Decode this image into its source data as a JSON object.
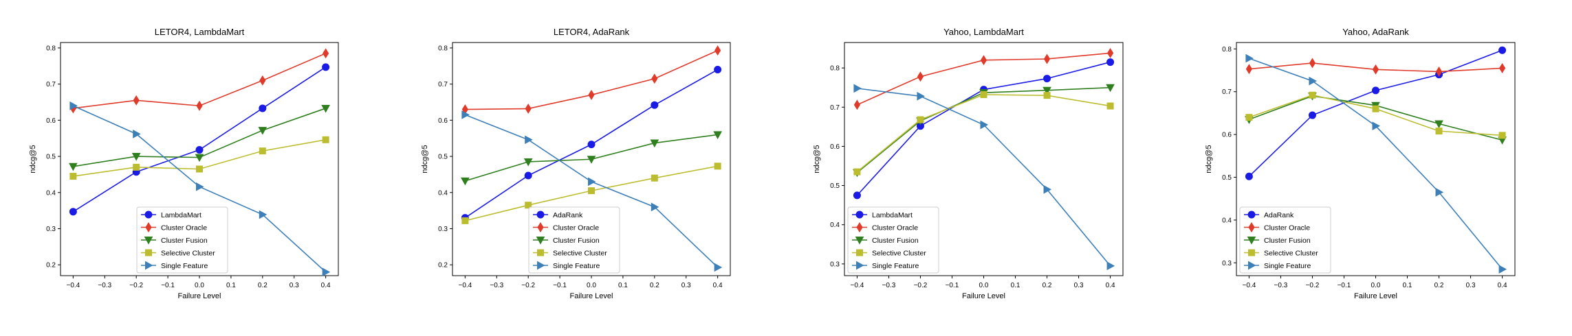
{
  "chart_data": [
    {
      "type": "line",
      "title": "LETOR4, LambdaMart",
      "xlabel": "Failure Level",
      "ylabel": "ndcg@5",
      "x": [
        -0.4,
        -0.2,
        0.0,
        0.2,
        0.4
      ],
      "xlim": [
        -0.44,
        0.44
      ],
      "ylim": [
        0.17,
        0.815
      ],
      "xticks": [
        "−0.4",
        "−0.3",
        "−0.2",
        "−0.1",
        "0.0",
        "0.1",
        "0.2",
        "0.3",
        "0.4"
      ],
      "yticks": [
        "0.2",
        "0.3",
        "0.4",
        "0.5",
        "0.6",
        "0.7",
        "0.8"
      ],
      "legend_position": "lower-center",
      "series": [
        {
          "name": "LambdaMart",
          "color": "#1b1be6",
          "marker": "circle",
          "values": [
            0.347,
            0.457,
            0.518,
            0.633,
            0.747
          ]
        },
        {
          "name": "Cluster Oracle",
          "color": "#e03a2a",
          "marker": "diamond",
          "values": [
            0.633,
            0.655,
            0.64,
            0.71,
            0.785
          ]
        },
        {
          "name": "Cluster Fusion",
          "color": "#2f7f1e",
          "marker": "triangle-down",
          "values": [
            0.472,
            0.5,
            0.497,
            0.572,
            0.633
          ]
        },
        {
          "name": "Selective Cluster",
          "color": "#bcbd2e",
          "marker": "square",
          "values": [
            0.445,
            0.47,
            0.465,
            0.515,
            0.546
          ]
        },
        {
          "name": "Single Feature",
          "color": "#3d7fb8",
          "marker": "triangle-right",
          "values": [
            0.64,
            0.562,
            0.416,
            0.339,
            0.18
          ]
        }
      ]
    },
    {
      "type": "line",
      "title": "LETOR4, AdaRank",
      "xlabel": "Failure Level",
      "ylabel": "ndcg@5",
      "x": [
        -0.4,
        -0.2,
        0.0,
        0.2,
        0.4
      ],
      "xlim": [
        -0.44,
        0.44
      ],
      "ylim": [
        0.17,
        0.815
      ],
      "xticks": [
        "−0.4",
        "−0.3",
        "−0.2",
        "−0.1",
        "0.0",
        "0.1",
        "0.2",
        "0.3",
        "0.4"
      ],
      "yticks": [
        "0.2",
        "0.3",
        "0.4",
        "0.5",
        "0.6",
        "0.7",
        "0.8"
      ],
      "legend_position": "lower-center",
      "series": [
        {
          "name": "AdaRank",
          "color": "#1b1be6",
          "marker": "circle",
          "values": [
            0.33,
            0.447,
            0.533,
            0.642,
            0.74
          ]
        },
        {
          "name": "Cluster Oracle",
          "color": "#e03a2a",
          "marker": "diamond",
          "values": [
            0.63,
            0.632,
            0.67,
            0.715,
            0.793
          ]
        },
        {
          "name": "Cluster Fusion",
          "color": "#2f7f1e",
          "marker": "triangle-down",
          "values": [
            0.432,
            0.485,
            0.492,
            0.537,
            0.56
          ]
        },
        {
          "name": "Selective Cluster",
          "color": "#bcbd2e",
          "marker": "square",
          "values": [
            0.322,
            0.365,
            0.405,
            0.44,
            0.473
          ]
        },
        {
          "name": "Single Feature",
          "color": "#3d7fb8",
          "marker": "triangle-right",
          "values": [
            0.615,
            0.546,
            0.43,
            0.36,
            0.193
          ]
        }
      ]
    },
    {
      "type": "line",
      "title": "Yahoo, LambdaMart",
      "xlabel": "Failure Level",
      "ylabel": "ndcg@5",
      "x": [
        -0.4,
        -0.2,
        0.0,
        0.2,
        0.4
      ],
      "xlim": [
        -0.44,
        0.44
      ],
      "ylim": [
        0.27,
        0.865
      ],
      "xticks": [
        "−0.4",
        "−0.3",
        "−0.2",
        "−0.1",
        "0.0",
        "0.1",
        "0.2",
        "0.3",
        "0.4"
      ],
      "yticks": [
        "0.3",
        "0.4",
        "0.5",
        "0.6",
        "0.7",
        "0.8"
      ],
      "legend_position": "lower-left",
      "series": [
        {
          "name": "LambdaMart",
          "color": "#1b1be6",
          "marker": "circle",
          "values": [
            0.475,
            0.652,
            0.745,
            0.773,
            0.815
          ]
        },
        {
          "name": "Cluster Oracle",
          "color": "#e03a2a",
          "marker": "diamond",
          "values": [
            0.706,
            0.778,
            0.82,
            0.823,
            0.838
          ]
        },
        {
          "name": "Cluster Fusion",
          "color": "#2f7f1e",
          "marker": "triangle-down",
          "values": [
            0.533,
            0.665,
            0.737,
            0.743,
            0.75
          ]
        },
        {
          "name": "Selective Cluster",
          "color": "#bcbd2e",
          "marker": "square",
          "values": [
            0.535,
            0.668,
            0.732,
            0.73,
            0.703
          ]
        },
        {
          "name": "Single Feature",
          "color": "#3d7fb8",
          "marker": "triangle-right",
          "values": [
            0.748,
            0.728,
            0.655,
            0.49,
            0.295
          ]
        }
      ]
    },
    {
      "type": "line",
      "title": "Yahoo, AdaRank",
      "xlabel": "Failure Level",
      "ylabel": "ndcg@5",
      "x": [
        -0.4,
        -0.2,
        0.0,
        0.2,
        0.4
      ],
      "xlim": [
        -0.44,
        0.44
      ],
      "ylim": [
        0.27,
        0.815
      ],
      "xticks": [
        "−0.4",
        "−0.3",
        "−0.2",
        "−0.1",
        "0.0",
        "0.1",
        "0.2",
        "0.3",
        "0.4"
      ],
      "yticks": [
        "0.3",
        "0.4",
        "0.5",
        "0.6",
        "0.7",
        "0.8"
      ],
      "legend_position": "lower-left",
      "series": [
        {
          "name": "AdaRank",
          "color": "#1b1be6",
          "marker": "circle",
          "values": [
            0.502,
            0.645,
            0.703,
            0.74,
            0.797
          ]
        },
        {
          "name": "Cluster Oracle",
          "color": "#e03a2a",
          "marker": "diamond",
          "values": [
            0.753,
            0.767,
            0.752,
            0.747,
            0.755
          ]
        },
        {
          "name": "Cluster Fusion",
          "color": "#2f7f1e",
          "marker": "triangle-down",
          "values": [
            0.635,
            0.69,
            0.668,
            0.625,
            0.587
          ]
        },
        {
          "name": "Selective Cluster",
          "color": "#bcbd2e",
          "marker": "square",
          "values": [
            0.64,
            0.692,
            0.66,
            0.608,
            0.598
          ]
        },
        {
          "name": "Single Feature",
          "color": "#3d7fb8",
          "marker": "triangle-right",
          "values": [
            0.778,
            0.725,
            0.62,
            0.465,
            0.285
          ]
        }
      ]
    }
  ]
}
